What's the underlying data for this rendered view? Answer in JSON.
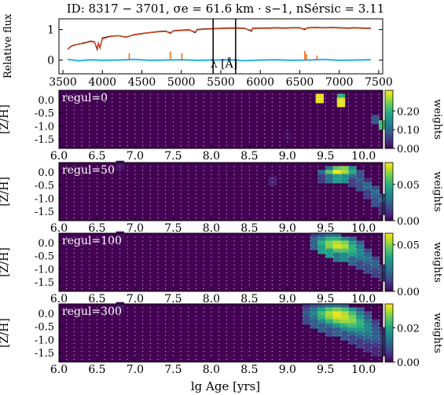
{
  "figure": {
    "title": "ID: 8317 − 3701,  σe = 61.6 km · s−1,  nSérsic = 3.11",
    "xlabel_bottom": "lg Age [yrs]"
  },
  "chart_data": [
    {
      "type": "line",
      "id": "spectrum",
      "xlabel": "λ [Å]",
      "ylabel": "Relative flux",
      "xlim": [
        3450,
        7550
      ],
      "ylim": [
        -0.45,
        1.35
      ],
      "xticks": [
        3500,
        4000,
        4500,
        5000,
        5500,
        6000,
        6500,
        7000,
        7500
      ],
      "yticks": [
        0,
        1
      ],
      "series": [
        {
          "role": "observed",
          "color": "#000000",
          "x": [
            3560,
            3600,
            3650,
            3700,
            3750,
            3800,
            3850,
            3900,
            3935,
            3950,
            3970,
            4000,
            4100,
            4200,
            4300,
            4400,
            4500,
            4600,
            4700,
            4800,
            4861,
            4900,
            5000,
            5100,
            5175,
            5200,
            5300,
            5400,
            5500,
            5600,
            5700,
            5800,
            5890,
            5900,
            6000,
            6100,
            6200,
            6300,
            6400,
            6500,
            6563,
            6600,
            6700,
            6800,
            6900,
            7000,
            7100,
            7200,
            7300,
            7400
          ],
          "y": [
            0.35,
            0.45,
            0.5,
            0.52,
            0.55,
            0.58,
            0.62,
            0.6,
            0.35,
            0.55,
            0.4,
            0.72,
            0.78,
            0.8,
            0.75,
            0.83,
            0.87,
            0.9,
            0.93,
            0.95,
            0.88,
            0.96,
            0.98,
            0.99,
            0.9,
            1.0,
            1.02,
            1.03,
            1.04,
            1.05,
            1.05,
            1.04,
            0.95,
            1.04,
            1.05,
            1.05,
            1.06,
            1.05,
            1.06,
            1.06,
            1.0,
            1.06,
            1.07,
            1.06,
            1.07,
            1.06,
            1.05,
            1.06,
            1.05,
            1.04
          ]
        },
        {
          "role": "model",
          "color": "#d9421a",
          "x": [
            3560,
            3600,
            3650,
            3700,
            3750,
            3800,
            3850,
            3900,
            3935,
            3950,
            3970,
            4000,
            4100,
            4200,
            4300,
            4400,
            4500,
            4600,
            4700,
            4800,
            4861,
            4900,
            5000,
            5100,
            5175,
            5200,
            5300,
            5400,
            5500,
            5600,
            5700,
            5800,
            5890,
            5900,
            6000,
            6100,
            6200,
            6300,
            6400,
            6500,
            6563,
            6600,
            6700,
            6800,
            6900,
            7000,
            7100,
            7200,
            7300,
            7400
          ],
          "y": [
            0.36,
            0.44,
            0.49,
            0.53,
            0.54,
            0.57,
            0.61,
            0.59,
            0.38,
            0.54,
            0.42,
            0.7,
            0.77,
            0.8,
            0.76,
            0.82,
            0.86,
            0.9,
            0.92,
            0.94,
            0.9,
            0.95,
            0.97,
            0.98,
            0.92,
            0.99,
            1.01,
            1.02,
            1.03,
            1.04,
            1.04,
            1.03,
            0.97,
            1.03,
            1.04,
            1.04,
            1.05,
            1.04,
            1.05,
            1.05,
            1.02,
            1.05,
            1.06,
            1.05,
            1.06,
            1.05,
            1.04,
            1.05,
            1.04,
            1.03
          ]
        },
        {
          "role": "residual",
          "color": "#35b4e6",
          "x": [
            3560,
            3700,
            3850,
            4000,
            4200,
            4400,
            4600,
            4800,
            5000,
            5200,
            5400,
            5600,
            5800,
            6000,
            6200,
            6400,
            6600,
            6800,
            7000,
            7200,
            7400
          ],
          "y": [
            0.02,
            -0.02,
            0.01,
            -0.01,
            0.0,
            0.02,
            -0.01,
            0.0,
            0.01,
            -0.01,
            0.0,
            0.01,
            -0.02,
            0.0,
            0.01,
            -0.01,
            0.0,
            0.02,
            -0.01,
            0.0,
            0.01
          ]
        }
      ],
      "gap_regions": [
        [
          5395,
          5400
        ],
        [
          5680,
          5684
        ]
      ],
      "masked_lines": [
        {
          "x": 4340,
          "y": 0.22
        },
        {
          "x": 4861,
          "y": 0.28
        },
        {
          "x": 5007,
          "y": 0.22
        },
        {
          "x": 6563,
          "y": 0.3
        },
        {
          "x": 6583,
          "y": 0.2
        },
        {
          "x": 6717,
          "y": 0.15
        }
      ]
    },
    {
      "type": "heatmap",
      "id": "regul-0",
      "annotation": "regul=0",
      "xlim": [
        6.0,
        10.25
      ],
      "ylim": [
        -1.85,
        0.35
      ],
      "xticks": [
        6.0,
        6.5,
        7.0,
        7.5,
        8.0,
        8.5,
        9.0,
        9.5,
        10.0
      ],
      "yticks": [
        0.0,
        -0.5,
        -1.0,
        -1.5
      ],
      "ylabel": "[Z/H]",
      "colorbar": {
        "label": "weights",
        "min": 0.0,
        "max": 0.31,
        "ticks": [
          0.0,
          0.1,
          0.2
        ]
      },
      "cells": [
        [
          9.42,
          0.05,
          0.3
        ],
        [
          9.7,
          0.05,
          0.2
        ],
        [
          9.7,
          -0.1,
          0.3
        ],
        [
          10.15,
          -0.75,
          0.08
        ],
        [
          10.25,
          -0.95,
          0.22
        ],
        [
          9.0,
          -1.35,
          0.01
        ],
        [
          8.7,
          -0.35,
          0.005
        ]
      ]
    },
    {
      "type": "heatmap",
      "id": "regul-50",
      "annotation": "regul=50",
      "xlim": [
        6.0,
        10.25
      ],
      "ylim": [
        -1.85,
        0.35
      ],
      "xticks": [
        6.0,
        6.5,
        7.0,
        7.5,
        8.0,
        8.5,
        9.0,
        9.5,
        10.0
      ],
      "yticks": [
        0.0,
        -0.5,
        -1.0,
        -1.5
      ],
      "ylabel": "[Z/H]",
      "colorbar": {
        "label": "weights",
        "min": 0.0,
        "max": 0.08,
        "ticks": [
          0.0,
          0.05
        ]
      },
      "cells": [
        [
          6.8,
          0.25,
          0.005
        ],
        [
          8.8,
          -0.35,
          0.008
        ],
        [
          9.55,
          0.05,
          0.03
        ],
        [
          9.65,
          0.05,
          0.06
        ],
        [
          9.75,
          0.05,
          0.065
        ],
        [
          9.85,
          0.05,
          0.04
        ],
        [
          9.45,
          -0.1,
          0.03
        ],
        [
          9.55,
          -0.1,
          0.06
        ],
        [
          9.65,
          -0.1,
          0.08
        ],
        [
          9.75,
          -0.1,
          0.07
        ],
        [
          9.85,
          -0.1,
          0.05
        ],
        [
          9.95,
          -0.1,
          0.02
        ],
        [
          9.45,
          -0.25,
          0.015
        ],
        [
          9.55,
          -0.25,
          0.03
        ],
        [
          9.65,
          -0.25,
          0.045
        ],
        [
          9.75,
          -0.25,
          0.04
        ],
        [
          9.85,
          -0.25,
          0.03
        ],
        [
          9.95,
          -0.25,
          0.02
        ],
        [
          9.85,
          -0.4,
          0.015
        ],
        [
          9.95,
          -0.4,
          0.025
        ],
        [
          10.05,
          -0.4,
          0.01
        ],
        [
          9.95,
          -0.55,
          0.02
        ],
        [
          10.05,
          -0.55,
          0.025
        ],
        [
          10.05,
          -0.7,
          0.03
        ],
        [
          10.15,
          -0.7,
          0.02
        ],
        [
          10.05,
          -0.85,
          0.015
        ],
        [
          10.15,
          -0.85,
          0.03
        ],
        [
          10.15,
          -1.0,
          0.025
        ],
        [
          10.25,
          -1.0,
          0.02
        ],
        [
          10.15,
          -1.15,
          0.02
        ],
        [
          10.25,
          -1.15,
          0.03
        ],
        [
          10.25,
          -1.3,
          0.015
        ],
        [
          10.25,
          -1.45,
          0.01
        ]
      ]
    },
    {
      "type": "heatmap",
      "id": "regul-100",
      "annotation": "regul=100",
      "xlim": [
        6.0,
        10.25
      ],
      "ylim": [
        -1.85,
        0.35
      ],
      "xticks": [
        6.0,
        6.5,
        7.0,
        7.5,
        8.0,
        8.5,
        9.0,
        9.5,
        10.0
      ],
      "yticks": [
        0.0,
        -0.5,
        -1.0,
        -1.5
      ],
      "ylabel": "[Z/H]",
      "colorbar": {
        "label": "weights",
        "min": 0.0,
        "max": 0.062,
        "ticks": [
          0.0,
          0.05
        ]
      },
      "cells": [
        [
          6.8,
          0.25,
          0.003
        ],
        [
          9.35,
          0.2,
          0.01
        ],
        [
          9.45,
          0.2,
          0.015
        ],
        [
          9.55,
          0.2,
          0.02
        ],
        [
          9.65,
          0.2,
          0.02
        ],
        [
          9.35,
          0.05,
          0.02
        ],
        [
          9.45,
          0.05,
          0.03
        ],
        [
          9.55,
          0.05,
          0.04
        ],
        [
          9.65,
          0.05,
          0.04
        ],
        [
          9.75,
          0.05,
          0.03
        ],
        [
          9.85,
          0.05,
          0.02
        ],
        [
          9.35,
          -0.1,
          0.02
        ],
        [
          9.45,
          -0.1,
          0.04
        ],
        [
          9.55,
          -0.1,
          0.05
        ],
        [
          9.65,
          -0.1,
          0.055
        ],
        [
          9.75,
          -0.1,
          0.05
        ],
        [
          9.85,
          -0.1,
          0.035
        ],
        [
          9.95,
          -0.1,
          0.02
        ],
        [
          9.45,
          -0.25,
          0.035
        ],
        [
          9.55,
          -0.25,
          0.05
        ],
        [
          9.65,
          -0.25,
          0.058
        ],
        [
          9.75,
          -0.25,
          0.055
        ],
        [
          9.85,
          -0.25,
          0.04
        ],
        [
          9.95,
          -0.25,
          0.025
        ],
        [
          9.55,
          -0.4,
          0.035
        ],
        [
          9.65,
          -0.4,
          0.045
        ],
        [
          9.75,
          -0.4,
          0.045
        ],
        [
          9.85,
          -0.4,
          0.04
        ],
        [
          9.95,
          -0.4,
          0.03
        ],
        [
          10.05,
          -0.4,
          0.015
        ],
        [
          9.65,
          -0.55,
          0.025
        ],
        [
          9.75,
          -0.55,
          0.03
        ],
        [
          9.85,
          -0.55,
          0.035
        ],
        [
          9.95,
          -0.55,
          0.03
        ],
        [
          10.05,
          -0.55,
          0.02
        ],
        [
          9.85,
          -0.7,
          0.02
        ],
        [
          9.95,
          -0.7,
          0.025
        ],
        [
          10.05,
          -0.7,
          0.025
        ],
        [
          10.15,
          -0.7,
          0.015
        ],
        [
          9.95,
          -0.85,
          0.015
        ],
        [
          10.05,
          -0.85,
          0.02
        ],
        [
          10.15,
          -0.85,
          0.02
        ],
        [
          10.05,
          -1.0,
          0.015
        ],
        [
          10.15,
          -1.0,
          0.02
        ],
        [
          10.25,
          -1.0,
          0.012
        ],
        [
          10.15,
          -1.15,
          0.012
        ],
        [
          10.25,
          -1.15,
          0.015
        ],
        [
          10.25,
          -1.3,
          0.01
        ]
      ]
    },
    {
      "type": "heatmap",
      "id": "regul-300",
      "annotation": "regul=300",
      "xlim": [
        6.0,
        10.25
      ],
      "ylim": [
        -1.85,
        0.35
      ],
      "xticks": [
        6.0,
        6.5,
        7.0,
        7.5,
        8.0,
        8.5,
        9.0,
        9.5,
        10.0
      ],
      "yticks": [
        0.0,
        -0.5,
        -1.0,
        -1.5
      ],
      "ylabel": "[Z/H]",
      "colorbar": {
        "label": "weights",
        "min": 0.0,
        "max": 0.034,
        "ticks": [
          0.0,
          0.02
        ]
      },
      "cells": [
        [
          6.8,
          0.25,
          0.002
        ],
        [
          9.25,
          0.2,
          0.005
        ],
        [
          9.35,
          0.2,
          0.008
        ],
        [
          9.45,
          0.2,
          0.01
        ],
        [
          9.55,
          0.2,
          0.012
        ],
        [
          9.65,
          0.2,
          0.012
        ],
        [
          9.75,
          0.2,
          0.01
        ],
        [
          9.25,
          0.05,
          0.008
        ],
        [
          9.35,
          0.05,
          0.014
        ],
        [
          9.45,
          0.05,
          0.02
        ],
        [
          9.55,
          0.05,
          0.025
        ],
        [
          9.65,
          0.05,
          0.027
        ],
        [
          9.75,
          0.05,
          0.024
        ],
        [
          9.85,
          0.05,
          0.018
        ],
        [
          9.95,
          0.05,
          0.01
        ],
        [
          9.25,
          -0.1,
          0.01
        ],
        [
          9.35,
          -0.1,
          0.016
        ],
        [
          9.45,
          -0.1,
          0.024
        ],
        [
          9.55,
          -0.1,
          0.03
        ],
        [
          9.65,
          -0.1,
          0.033
        ],
        [
          9.75,
          -0.1,
          0.03
        ],
        [
          9.85,
          -0.1,
          0.024
        ],
        [
          9.95,
          -0.1,
          0.015
        ],
        [
          10.05,
          -0.1,
          0.008
        ],
        [
          9.25,
          -0.25,
          0.008
        ],
        [
          9.35,
          -0.25,
          0.014
        ],
        [
          9.45,
          -0.25,
          0.022
        ],
        [
          9.55,
          -0.25,
          0.028
        ],
        [
          9.65,
          -0.25,
          0.032
        ],
        [
          9.75,
          -0.25,
          0.031
        ],
        [
          9.85,
          -0.25,
          0.027
        ],
        [
          9.95,
          -0.25,
          0.019
        ],
        [
          10.05,
          -0.25,
          0.01
        ],
        [
          9.35,
          -0.4,
          0.01
        ],
        [
          9.45,
          -0.4,
          0.016
        ],
        [
          9.55,
          -0.4,
          0.022
        ],
        [
          9.65,
          -0.4,
          0.027
        ],
        [
          9.75,
          -0.4,
          0.029
        ],
        [
          9.85,
          -0.4,
          0.028
        ],
        [
          9.95,
          -0.4,
          0.022
        ],
        [
          10.05,
          -0.4,
          0.014
        ],
        [
          10.15,
          -0.4,
          0.006
        ],
        [
          9.45,
          -0.55,
          0.01
        ],
        [
          9.55,
          -0.55,
          0.014
        ],
        [
          9.65,
          -0.55,
          0.018
        ],
        [
          9.75,
          -0.55,
          0.022
        ],
        [
          9.85,
          -0.55,
          0.024
        ],
        [
          9.95,
          -0.55,
          0.022
        ],
        [
          10.05,
          -0.55,
          0.016
        ],
        [
          10.15,
          -0.55,
          0.008
        ],
        [
          9.55,
          -0.7,
          0.008
        ],
        [
          9.65,
          -0.7,
          0.011
        ],
        [
          9.75,
          -0.7,
          0.015
        ],
        [
          9.85,
          -0.7,
          0.018
        ],
        [
          9.95,
          -0.7,
          0.019
        ],
        [
          10.05,
          -0.7,
          0.016
        ],
        [
          10.15,
          -0.7,
          0.01
        ],
        [
          10.25,
          -0.7,
          0.005
        ],
        [
          9.75,
          -0.85,
          0.009
        ],
        [
          9.85,
          -0.85,
          0.012
        ],
        [
          9.95,
          -0.85,
          0.014
        ],
        [
          10.05,
          -0.85,
          0.014
        ],
        [
          10.15,
          -0.85,
          0.011
        ],
        [
          10.25,
          -0.85,
          0.006
        ],
        [
          9.85,
          -1.0,
          0.007
        ],
        [
          9.95,
          -1.0,
          0.01
        ],
        [
          10.05,
          -1.0,
          0.012
        ],
        [
          10.15,
          -1.0,
          0.011
        ],
        [
          10.25,
          -1.0,
          0.007
        ],
        [
          9.95,
          -1.15,
          0.006
        ],
        [
          10.05,
          -1.15,
          0.008
        ],
        [
          10.15,
          -1.15,
          0.009
        ],
        [
          10.25,
          -1.15,
          0.007
        ],
        [
          10.05,
          -1.3,
          0.005
        ],
        [
          10.15,
          -1.3,
          0.006
        ],
        [
          10.25,
          -1.3,
          0.005
        ],
        [
          10.15,
          -1.45,
          0.004
        ],
        [
          10.25,
          -1.45,
          0.004
        ]
      ]
    }
  ]
}
